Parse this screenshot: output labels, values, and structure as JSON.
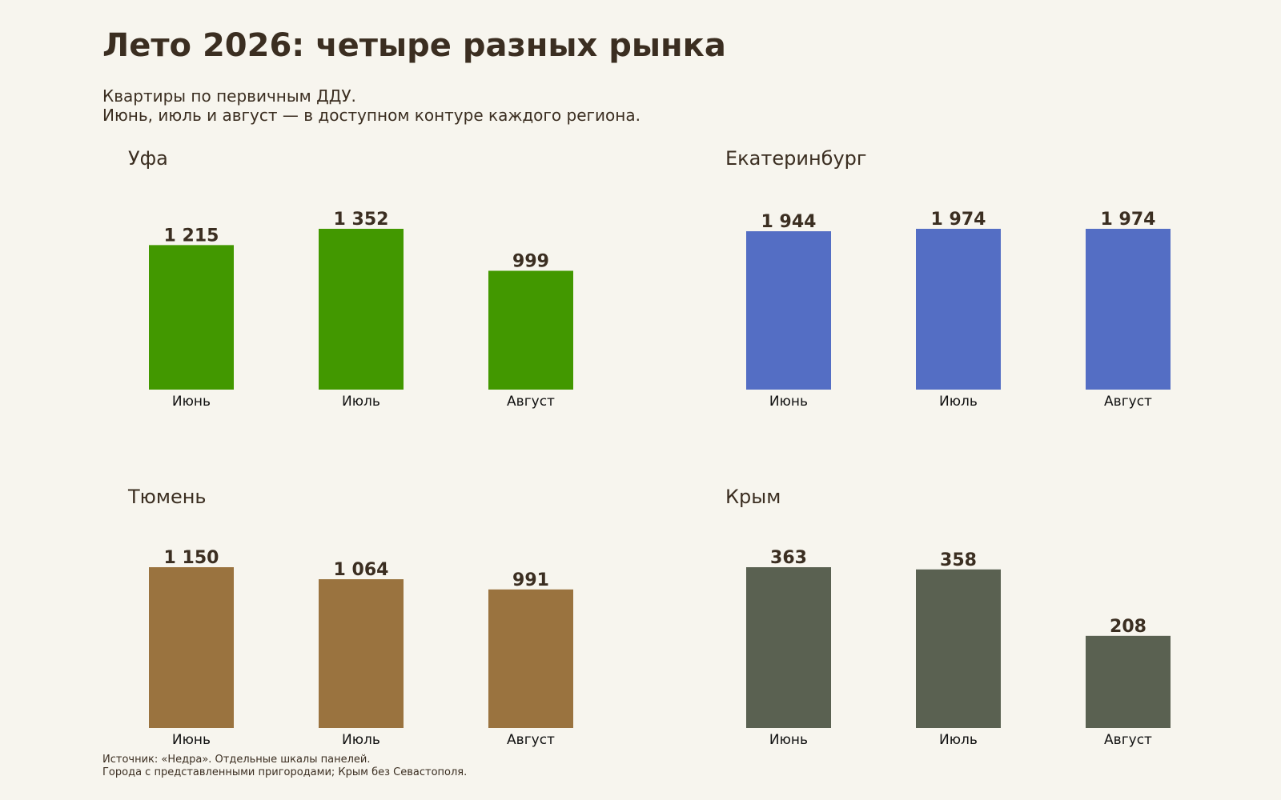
{
  "header": {
    "title": "Лето 2026: четыре разных рынка",
    "subtitle_line1": "Квартиры по первичным ДДУ.",
    "subtitle_line2": "Июнь, июль и август — в доступном контуре каждого региона."
  },
  "footer": {
    "line1": "Источник: «Недра». Отдельные шкалы панелей.",
    "line2": "Города с представленными пригородами; Крым без Севастополя."
  },
  "chart_data": [
    {
      "type": "bar",
      "title": "Уфа",
      "categories": [
        "Июнь",
        "Июль",
        "Август"
      ],
      "values": [
        1215,
        1352,
        999
      ],
      "value_labels": [
        "1 215",
        "1 352",
        "999"
      ],
      "color": "#429800"
    },
    {
      "type": "bar",
      "title": "Екатеринбург",
      "categories": [
        "Июнь",
        "Июль",
        "Август"
      ],
      "values": [
        1944,
        1974,
        1974
      ],
      "value_labels": [
        "1 944",
        "1 974",
        "1 974"
      ],
      "color": "#546ec4"
    },
    {
      "type": "bar",
      "title": "Тюмень",
      "categories": [
        "Июнь",
        "Июль",
        "Август"
      ],
      "values": [
        1150,
        1064,
        991
      ],
      "value_labels": [
        "1 150",
        "1 064",
        "991"
      ],
      "color": "#9a733f"
    },
    {
      "type": "bar",
      "title": "Крым",
      "categories": [
        "Июнь",
        "Июль",
        "Август"
      ],
      "values": [
        363,
        358,
        208
      ],
      "value_labels": [
        "363",
        "358",
        "208"
      ],
      "color": "#5a6151"
    }
  ]
}
